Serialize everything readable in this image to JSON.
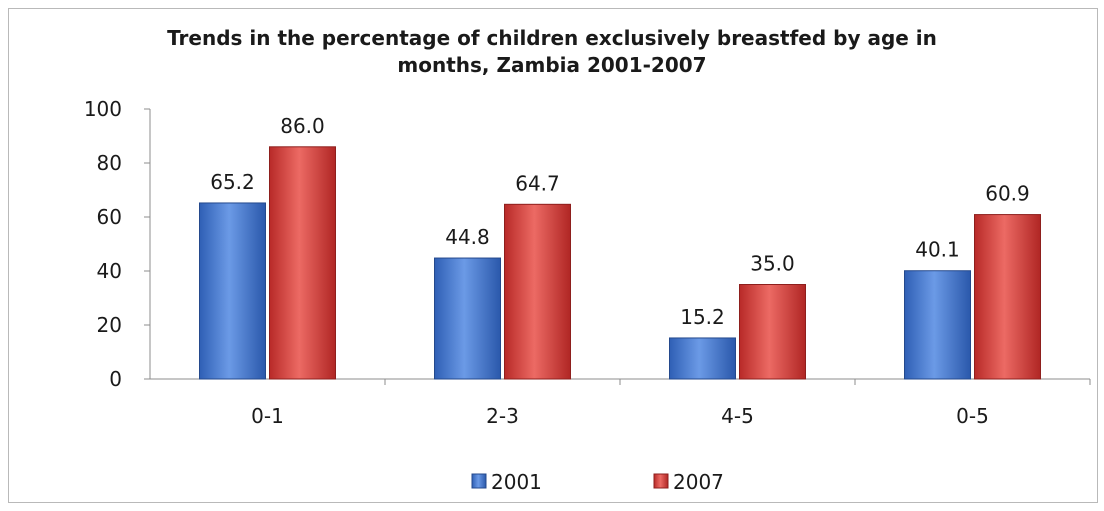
{
  "chart_data": {
    "type": "bar",
    "title_lines": [
      "Trends in the percentage of children exclusively breastfed by age in",
      "months, Zambia 2001-2007"
    ],
    "xlabel": "",
    "ylabel": "",
    "categories": [
      "0-1",
      "2-3",
      "4-5",
      "0-5"
    ],
    "series": [
      {
        "name": "2001",
        "values": [
          65.2,
          44.8,
          15.2,
          40.1
        ],
        "color": "#4a7bd0",
        "labels": [
          "65.2",
          "44.8",
          "15.2",
          "40.1"
        ]
      },
      {
        "name": "2007",
        "values": [
          86.0,
          64.7,
          35.0,
          60.9
        ],
        "color": "#d8403c",
        "labels": [
          "86.0",
          "64.7",
          "35.0",
          "60.9"
        ]
      }
    ],
    "ylim": [
      0,
      100
    ],
    "yticks": [
      0,
      20,
      40,
      60,
      80,
      100
    ],
    "grid": false,
    "legend_position": "bottom"
  }
}
